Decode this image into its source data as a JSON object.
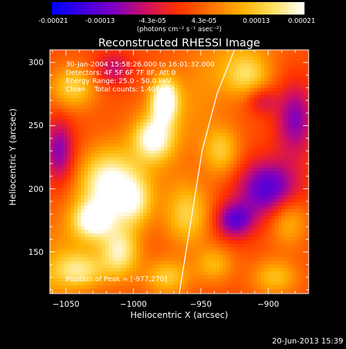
{
  "chart_data": {
    "type": "heatmap",
    "title": "Reconstructed RHESSI Image",
    "xlabel": "Heliocentric X (arcsec)",
    "ylabel": "Heliocentric Y (arcsec)",
    "xlim": [
      -1062,
      -870
    ],
    "ylim": [
      117,
      310
    ],
    "x_ticks": [
      -1050,
      -1000,
      -950,
      -900
    ],
    "x_tick_labels": [
      "−1050",
      "−1000",
      "−950",
      "−900"
    ],
    "y_ticks": [
      150,
      200,
      250,
      300
    ],
    "y_tick_labels": [
      "150",
      "200",
      "250",
      "300"
    ],
    "colorbar": {
      "min": -0.00021,
      "max": 0.00021,
      "tick_values": [
        -0.00021,
        -0.00013,
        -4.3e-05,
        4.3e-05,
        0.00013,
        0.00021
      ],
      "tick_labels": [
        "-0.00021",
        "-0.00013",
        "-4.3e-05",
        "4.3e-05",
        "0.00013",
        "0.00021"
      ],
      "unit_label": "(photons cm⁻² s⁻¹ asec⁻²)",
      "colors": [
        "#0000ff",
        "#4000e0",
        "#8000c0",
        "#d01060",
        "#ff3000",
        "#ff7000",
        "#ffb000",
        "#ffe060",
        "#ffffff"
      ]
    },
    "annotations": {
      "time": "30-Jan-2004 15:58:26.000 to 16:01:32.000",
      "detectors": "Detectors: 4F 5F 6F 7F 8F, Att 0",
      "energy": "Energy Range: 25.0 - 50.0 keV",
      "clean": "Clean    Total counts: 1.40E+03",
      "peak": "Position of Peak = [-977,270]"
    },
    "peak_position": [
      -977,
      270
    ],
    "limb_curve": [
      [
        -966,
        117
      ],
      [
        -958,
        170
      ],
      [
        -949,
        230
      ],
      [
        -938,
        275
      ],
      [
        -925,
        310
      ]
    ],
    "limb_color": "#ffffff",
    "hot_spots": [
      {
        "x": -977,
        "y": 270,
        "intensity": 1.0,
        "sx": 7,
        "sy": 12
      },
      {
        "x": -985,
        "y": 240,
        "intensity": 0.75,
        "sx": 10,
        "sy": 12
      },
      {
        "x": -1020,
        "y": 205,
        "intensity": 0.7,
        "sx": 14,
        "sy": 18
      },
      {
        "x": -1030,
        "y": 175,
        "intensity": 0.75,
        "sx": 10,
        "sy": 10
      },
      {
        "x": -1010,
        "y": 150,
        "intensity": 0.7,
        "sx": 10,
        "sy": 14
      },
      {
        "x": -1000,
        "y": 190,
        "intensity": 0.6,
        "sx": 10,
        "sy": 14
      },
      {
        "x": -1045,
        "y": 280,
        "intensity": 0.55,
        "sx": 12,
        "sy": 12
      },
      {
        "x": -1040,
        "y": 135,
        "intensity": 0.55,
        "sx": 14,
        "sy": 10
      },
      {
        "x": -960,
        "y": 180,
        "intensity": 0.55,
        "sx": 12,
        "sy": 18
      },
      {
        "x": -975,
        "y": 130,
        "intensity": 0.5,
        "sx": 12,
        "sy": 10
      },
      {
        "x": -935,
        "y": 230,
        "intensity": 0.5,
        "sx": 10,
        "sy": 14
      },
      {
        "x": -915,
        "y": 290,
        "intensity": 0.5,
        "sx": 12,
        "sy": 12
      },
      {
        "x": -885,
        "y": 175,
        "intensity": 0.45,
        "sx": 10,
        "sy": 14
      },
      {
        "x": -895,
        "y": 130,
        "intensity": 0.45,
        "sx": 12,
        "sy": 10
      },
      {
        "x": -940,
        "y": 140,
        "intensity": 0.4,
        "sx": 10,
        "sy": 10
      },
      {
        "x": -1055,
        "y": 230,
        "intensity": -0.6,
        "sx": 8,
        "sy": 18
      },
      {
        "x": -900,
        "y": 200,
        "intensity": -0.8,
        "sx": 16,
        "sy": 16
      },
      {
        "x": -925,
        "y": 175,
        "intensity": -0.7,
        "sx": 10,
        "sy": 10
      },
      {
        "x": -880,
        "y": 255,
        "intensity": -0.6,
        "sx": 10,
        "sy": 20
      },
      {
        "x": -1015,
        "y": 295,
        "intensity": -0.4,
        "sx": 10,
        "sy": 10
      },
      {
        "x": -905,
        "y": 270,
        "intensity": -0.35,
        "sx": 8,
        "sy": 8
      }
    ]
  },
  "footer": {
    "date": "20-Jun-2013 15:39"
  }
}
